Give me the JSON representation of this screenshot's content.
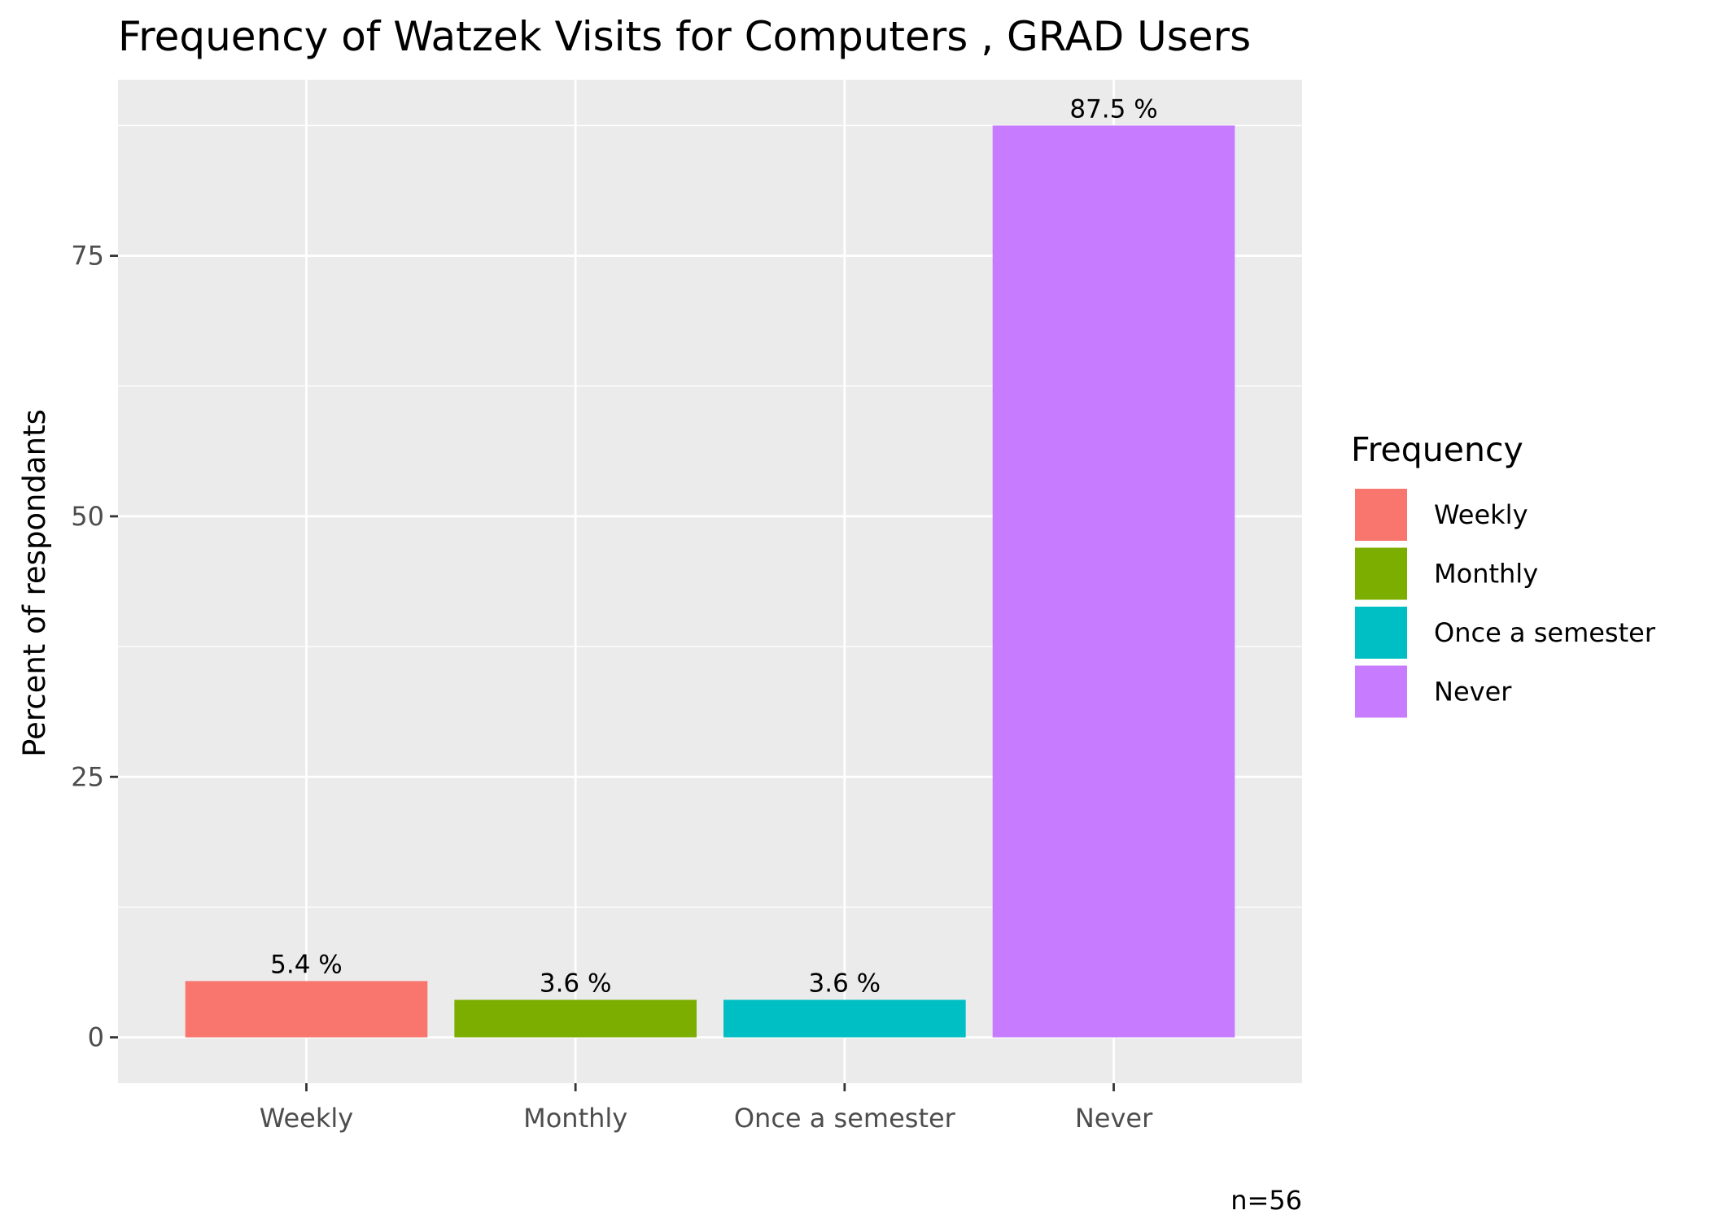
{
  "chart_data": {
    "type": "bar",
    "title": "Frequency of Watzek Visits for Computers , GRAD Users",
    "xlabel": "",
    "ylabel": "Percent of respondants",
    "categories": [
      "Weekly",
      "Monthly",
      "Once a semester",
      "Never"
    ],
    "values": [
      5.4,
      3.6,
      3.6,
      87.5
    ],
    "data_labels": [
      "5.4 %",
      "3.6 %",
      "3.6 %",
      "87.5 %"
    ],
    "colors": [
      "#F8766D",
      "#7CAE00",
      "#00BFC4",
      "#C77CFF"
    ],
    "ylim": [
      -4.4,
      91.9
    ],
    "yticks": [
      0,
      25,
      50,
      75
    ],
    "grid": true,
    "legend": {
      "title": "Frequency",
      "position": "right",
      "entries": [
        "Weekly",
        "Monthly",
        "Once a semester",
        "Never"
      ]
    },
    "caption": "n=56",
    "panel_background": "#EBEBEB",
    "grid_color": "#FFFFFF"
  }
}
